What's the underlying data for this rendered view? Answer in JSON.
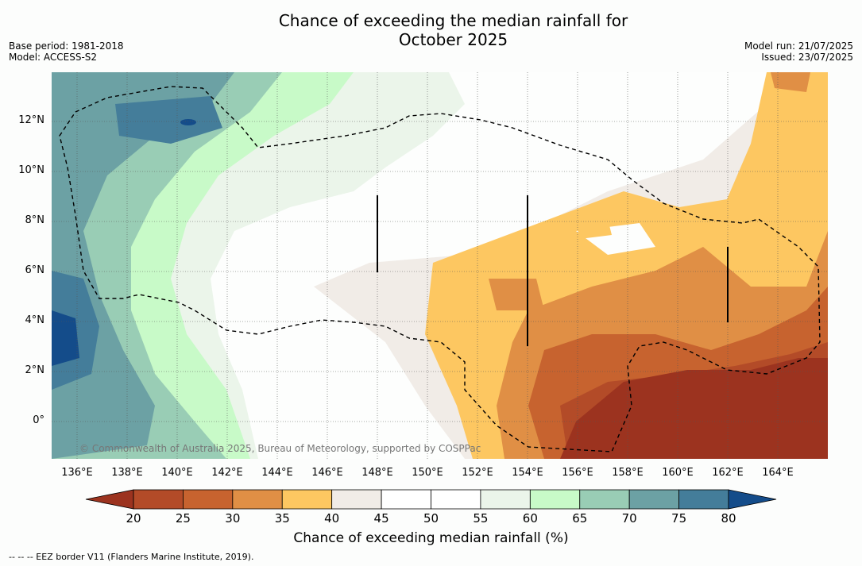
{
  "header": {
    "title_line1": "Chance of exceeding the median rainfall for",
    "title_line2": "October 2025",
    "base_period": "Base period: 1981-2018",
    "model": "Model: ACCESS-S2",
    "model_run": "Model run: 21/07/2025",
    "issued": "Issued: 23/07/2025"
  },
  "map": {
    "copyright": "© Commonwealth of Australia 2025, Bureau of Meteorology, supported by COSPPac",
    "lat_labels": [
      "12°N",
      "10°N",
      "8°N",
      "6°N",
      "4°N",
      "2°N",
      "0°"
    ],
    "lon_labels": [
      "136°E",
      "138°E",
      "140°E",
      "142°E",
      "144°E",
      "146°E",
      "148°E",
      "150°E",
      "152°E",
      "154°E",
      "156°E",
      "158°E",
      "160°E",
      "162°E",
      "164°E"
    ]
  },
  "colorbar": {
    "ticks": [
      "20",
      "25",
      "30",
      "35",
      "40",
      "45",
      "50",
      "55",
      "60",
      "65",
      "70",
      "75",
      "80"
    ],
    "colors": [
      "#9c331f",
      "#b34b28",
      "#c7632f",
      "#e08f45",
      "#fdc761",
      "#f1ece7",
      "#ffffff",
      "#ffffff",
      "#ebf5ea",
      "#c8fac8",
      "#99cdb5",
      "#6ca1a4",
      "#447d9a",
      "#144c8a"
    ],
    "title": "Chance of exceeding median rainfall (%)"
  },
  "footer": {
    "legend_text": "-- -- -- EEZ border V11 (Flanders Marine Institute, 2019)."
  }
}
